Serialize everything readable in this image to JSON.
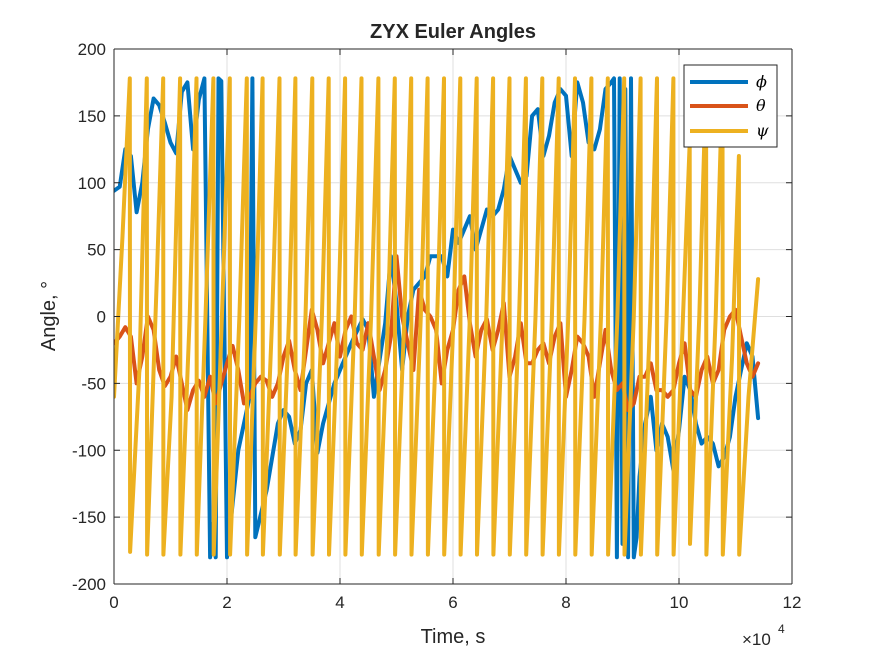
{
  "chart_data": {
    "type": "line",
    "title": "ZYX Euler Angles",
    "xlabel": "Time, s",
    "ylabel": "Angle, °",
    "x_exponent": "×10",
    "x_exponent_power": "4",
    "xlim": [
      0,
      120000
    ],
    "ylim": [
      -200,
      200
    ],
    "xticks": [
      0,
      20000,
      40000,
      60000,
      80000,
      100000,
      120000
    ],
    "xtick_labels": [
      "0",
      "2",
      "4",
      "6",
      "8",
      "10",
      "12"
    ],
    "yticks": [
      -200,
      -150,
      -100,
      -50,
      0,
      50,
      100,
      150,
      200
    ],
    "ytick_labels": [
      "-200",
      "-150",
      "-100",
      "-50",
      "0",
      "50",
      "100",
      "150",
      "200"
    ],
    "grid": true,
    "legend_location": "top-right",
    "colors": {
      "phi": "#0072bd",
      "theta": "#d95319",
      "psi": "#edb120"
    },
    "series": [
      {
        "key": "phi",
        "name": "ϕ",
        "x": [
          0,
          1000,
          2000,
          3000,
          4000,
          5000,
          6000,
          7000,
          8000,
          9000,
          10000,
          11000,
          12000,
          13000,
          14000,
          15000,
          16000,
          17000,
          17500,
          18000,
          18500,
          19000,
          20000,
          21000,
          22000,
          24000,
          24500,
          25000,
          27000,
          29000,
          30000,
          31000,
          32000,
          33000,
          34000,
          35000,
          36000,
          37000,
          39000,
          40000,
          42000,
          44000,
          45000,
          46000,
          48000,
          49000,
          50000,
          51000,
          52000,
          53000,
          55000,
          56000,
          58000,
          59000,
          60000,
          61000,
          63000,
          64000,
          66000,
          67000,
          68000,
          69000,
          70000,
          71000,
          72000,
          73000,
          74000,
          75000,
          76000,
          77000,
          78000,
          79000,
          80000,
          81000,
          82000,
          83000,
          84000,
          85000,
          86000,
          87000,
          88000,
          88500,
          89000,
          89500,
          90000,
          90500,
          91000,
          91500,
          92000,
          92500,
          93000,
          94000,
          95000,
          96000,
          97000,
          98000,
          99000,
          100000,
          101000,
          102000,
          103000,
          104000,
          105000,
          106000,
          107000,
          108000,
          109000,
          110000,
          111000,
          112000,
          113000,
          114000
        ],
        "y": [
          94,
          97,
          125,
          120,
          78,
          100,
          140,
          163,
          158,
          145,
          130,
          122,
          168,
          175,
          125,
          162,
          178,
          -180,
          -155,
          -180,
          178,
          176,
          -180,
          -140,
          -100,
          -60,
          178,
          -165,
          -130,
          -80,
          -70,
          -75,
          -95,
          -85,
          -50,
          -40,
          -102,
          -80,
          -50,
          -40,
          -20,
          -2,
          -10,
          -60,
          -5,
          45,
          10,
          -40,
          0,
          20,
          30,
          45,
          45,
          30,
          65,
          55,
          75,
          50,
          80,
          75,
          80,
          95,
          120,
          110,
          100,
          105,
          150,
          155,
          120,
          135,
          160,
          170,
          165,
          120,
          175,
          160,
          130,
          125,
          140,
          170,
          175,
          178,
          -180,
          178,
          -170,
          170,
          -180,
          178,
          -180,
          -165,
          -120,
          -80,
          -60,
          -100,
          -80,
          -90,
          -115,
          -85,
          -45,
          -55,
          -80,
          -95,
          -90,
          -95,
          -112,
          -105,
          -90,
          -60,
          -40,
          -20,
          -30,
          -76
        ]
      },
      {
        "key": "theta",
        "name": "θ",
        "x": [
          0,
          1000,
          2000,
          3000,
          4000,
          5000,
          6000,
          7000,
          8000,
          9000,
          10000,
          11000,
          12000,
          13000,
          14000,
          15000,
          16000,
          17000,
          18000,
          19000,
          20000,
          21000,
          22000,
          23000,
          24000,
          25000,
          26000,
          27000,
          28000,
          29000,
          30000,
          31000,
          32000,
          33000,
          34000,
          35000,
          36000,
          37000,
          38000,
          39000,
          40000,
          41000,
          42000,
          43000,
          44000,
          45000,
          46000,
          47000,
          48000,
          49000,
          50000,
          51000,
          52000,
          53000,
          54000,
          55000,
          56000,
          57000,
          58000,
          59000,
          60000,
          61000,
          62000,
          63000,
          64000,
          65000,
          66000,
          67000,
          68000,
          69000,
          70000,
          71000,
          72000,
          73000,
          74000,
          75000,
          76000,
          77000,
          78000,
          79000,
          80000,
          81000,
          82000,
          83000,
          84000,
          85000,
          86000,
          87000,
          88000,
          89000,
          90000,
          91000,
          92000,
          93000,
          94000,
          95000,
          96000,
          97000,
          98000,
          99000,
          100000,
          101000,
          102000,
          103000,
          104000,
          105000,
          106000,
          107000,
          108000,
          109000,
          110000,
          111000,
          112000,
          113000,
          114000
        ],
        "y": [
          -20,
          -15,
          -8,
          -15,
          -50,
          -30,
          0,
          -10,
          -40,
          -52,
          -45,
          -30,
          -50,
          -70,
          -55,
          -48,
          -60,
          -45,
          -65,
          -50,
          -35,
          -22,
          -40,
          -65,
          -60,
          -50,
          -45,
          -48,
          -60,
          -50,
          -30,
          -18,
          -40,
          -55,
          -25,
          5,
          -10,
          -35,
          -20,
          -5,
          -30,
          -10,
          0,
          -20,
          -25,
          -5,
          -30,
          -55,
          -40,
          -15,
          45,
          0,
          -20,
          -40,
          20,
          5,
          0,
          -10,
          -50,
          -25,
          -10,
          20,
          30,
          -5,
          -30,
          -10,
          -2,
          -25,
          -10,
          10,
          -45,
          -30,
          -5,
          -35,
          -35,
          -25,
          -20,
          -35,
          -15,
          -5,
          -60,
          -40,
          -15,
          -20,
          -30,
          -60,
          -35,
          -10,
          -40,
          -55,
          -50,
          -70,
          -65,
          -45,
          -45,
          -35,
          -55,
          -55,
          -60,
          -55,
          -35,
          -20,
          -55,
          -60,
          -40,
          -30,
          -50,
          -40,
          -10,
          0,
          5,
          -15,
          -35,
          -45,
          -35
        ]
      },
      {
        "key": "psi",
        "name": "ψ",
        "x": [
          0,
          1500,
          2800,
          2850,
          4500,
          5800,
          5850,
          7600,
          8700,
          8750,
          10200,
          11700,
          11750,
          13400,
          14600,
          14650,
          16200,
          17600,
          17650,
          19100,
          20500,
          20550,
          22200,
          23500,
          23550,
          25100,
          26300,
          26350,
          28000,
          29300,
          29350,
          31000,
          32100,
          32150,
          33900,
          35100,
          35150,
          36800,
          38000,
          38050,
          39700,
          40900,
          40950,
          42600,
          43800,
          43850,
          45500,
          46800,
          46850,
          48500,
          49700,
          49750,
          51400,
          52600,
          52650,
          54300,
          55500,
          55550,
          57200,
          58400,
          58450,
          60100,
          61300,
          61350,
          63000,
          64200,
          64250,
          65900,
          67100,
          67150,
          68800,
          70000,
          70050,
          71700,
          72900,
          72950,
          74600,
          75800,
          75850,
          77500,
          78700,
          78750,
          80400,
          81600,
          81650,
          83300,
          84500,
          84550,
          86200,
          87400,
          87450,
          89100,
          90300,
          90350,
          92000,
          93200,
          93250,
          94900,
          96100,
          96150,
          97800,
          99000,
          99050,
          100700,
          101900,
          101950,
          103600,
          104800,
          104850,
          106500,
          107700,
          107750,
          109400,
          110600,
          110650,
          112300,
          114000
        ],
        "y": [
          -60,
          60,
          178,
          -176,
          -40,
          178,
          -178,
          30,
          178,
          -178,
          -60,
          178,
          -178,
          0,
          178,
          -178,
          0,
          178,
          -178,
          0,
          178,
          -178,
          0,
          178,
          -178,
          0,
          178,
          -178,
          0,
          178,
          -178,
          0,
          178,
          -178,
          0,
          178,
          -178,
          0,
          178,
          -178,
          0,
          178,
          -178,
          0,
          178,
          -178,
          0,
          178,
          -178,
          0,
          178,
          -178,
          0,
          178,
          -178,
          0,
          178,
          -178,
          0,
          178,
          -178,
          0,
          178,
          -178,
          0,
          178,
          -178,
          0,
          178,
          -178,
          0,
          178,
          -178,
          0,
          178,
          -178,
          0,
          178,
          -178,
          0,
          178,
          -178,
          0,
          178,
          -178,
          0,
          178,
          -178,
          0,
          178,
          -178,
          0,
          178,
          -178,
          0,
          178,
          -178,
          0,
          178,
          -178,
          0,
          178,
          -178,
          0,
          130,
          -170,
          0,
          178,
          -178,
          0,
          178,
          -178,
          -30,
          120,
          -178,
          -60,
          28
        ]
      }
    ]
  }
}
